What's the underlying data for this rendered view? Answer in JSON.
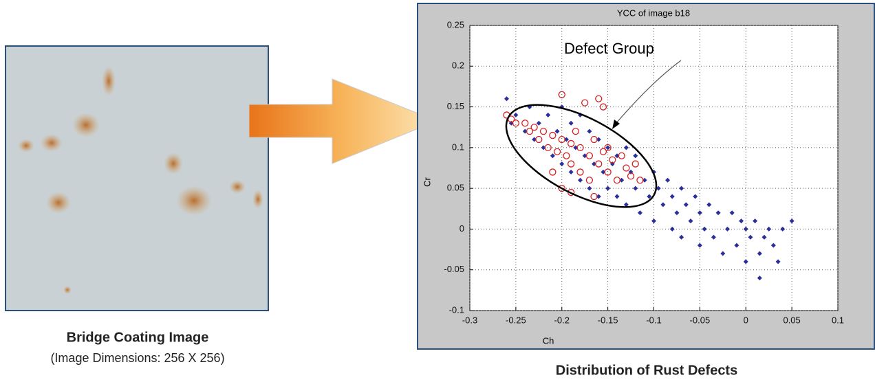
{
  "left_caption": {
    "title": "Bridge Coating Image",
    "subtitle": "(Image Dimensions: 256 X 256)"
  },
  "right_caption": "Distribution of Rust Defects",
  "chart_data": {
    "type": "scatter",
    "title": "YCC of image b18",
    "x_label": "Ch",
    "y_label": "Cr",
    "annotation": "Defect Group",
    "xlim": [
      -0.3,
      0.1
    ],
    "ylim": [
      -0.1,
      0.25
    ],
    "xticks": [
      -0.3,
      -0.25,
      -0.2,
      -0.15,
      -0.1,
      -0.05,
      0,
      0.05,
      0.1
    ],
    "yticks": [
      -0.1,
      -0.05,
      0,
      0.05,
      0.1,
      0.15,
      0.2,
      0.25
    ],
    "grid": true,
    "series": [
      {
        "color": "#2b2f9a",
        "marker": "diamond",
        "x": [
          -0.26,
          -0.255,
          -0.25,
          -0.24,
          -0.235,
          -0.23,
          -0.225,
          -0.22,
          -0.215,
          -0.21,
          -0.205,
          -0.2,
          -0.2,
          -0.195,
          -0.19,
          -0.19,
          -0.185,
          -0.18,
          -0.18,
          -0.175,
          -0.17,
          -0.17,
          -0.165,
          -0.16,
          -0.16,
          -0.155,
          -0.15,
          -0.15,
          -0.145,
          -0.14,
          -0.14,
          -0.135,
          -0.13,
          -0.13,
          -0.125,
          -0.12,
          -0.12,
          -0.115,
          -0.11,
          -0.105,
          -0.1,
          -0.1,
          -0.095,
          -0.09,
          -0.085,
          -0.08,
          -0.08,
          -0.075,
          -0.07,
          -0.07,
          -0.065,
          -0.06,
          -0.055,
          -0.05,
          -0.05,
          -0.045,
          -0.04,
          -0.035,
          -0.03,
          -0.025,
          -0.02,
          -0.015,
          -0.01,
          -0.005,
          0,
          0,
          0.005,
          0.01,
          0.015,
          0.015,
          0.02,
          0.025,
          0.03,
          0.04,
          0.05,
          0.035
        ],
        "values": [
          0.16,
          0.13,
          0.14,
          0.12,
          0.15,
          0.11,
          0.13,
          0.1,
          0.14,
          0.09,
          0.12,
          0.15,
          0.08,
          0.11,
          0.13,
          0.07,
          0.1,
          0.14,
          0.06,
          0.09,
          0.12,
          0.05,
          0.08,
          0.11,
          0.04,
          0.07,
          0.1,
          0.05,
          0.08,
          0.09,
          0.04,
          0.06,
          0.1,
          0.03,
          0.07,
          0.05,
          0.09,
          0.02,
          0.06,
          0.04,
          0.07,
          0.01,
          0.05,
          0.03,
          0.06,
          0,
          0.04,
          0.02,
          0.05,
          -0.01,
          0.03,
          0.01,
          0.04,
          -0.02,
          0.02,
          0,
          0.03,
          -0.01,
          0.02,
          -0.03,
          0,
          0.02,
          -0.02,
          0.01,
          -0.04,
          0,
          -0.01,
          0.01,
          -0.06,
          -0.03,
          -0.01,
          0,
          -0.02,
          0,
          0.01,
          -0.04
        ]
      },
      {
        "color": "#d42020",
        "marker": "circle",
        "x": [
          -0.26,
          -0.255,
          -0.25,
          -0.24,
          -0.235,
          -0.23,
          -0.225,
          -0.22,
          -0.215,
          -0.21,
          -0.205,
          -0.2,
          -0.2,
          -0.195,
          -0.19,
          -0.19,
          -0.185,
          -0.18,
          -0.18,
          -0.175,
          -0.17,
          -0.17,
          -0.165,
          -0.16,
          -0.16,
          -0.155,
          -0.15,
          -0.15,
          -0.145,
          -0.14,
          -0.135,
          -0.13,
          -0.125,
          -0.12,
          -0.115,
          -0.2,
          -0.19,
          -0.165,
          -0.21,
          -0.155
        ],
        "values": [
          0.14,
          0.135,
          0.13,
          0.13,
          0.12,
          0.125,
          0.11,
          0.12,
          0.1,
          0.115,
          0.095,
          0.165,
          0.11,
          0.09,
          0.105,
          0.08,
          0.12,
          0.07,
          0.1,
          0.155,
          0.09,
          0.06,
          0.11,
          0.08,
          0.16,
          0.095,
          0.07,
          0.1,
          0.085,
          0.06,
          0.09,
          0.075,
          0.065,
          0.08,
          0.06,
          0.05,
          0.045,
          0.04,
          0.07,
          0.15
        ]
      }
    ]
  }
}
